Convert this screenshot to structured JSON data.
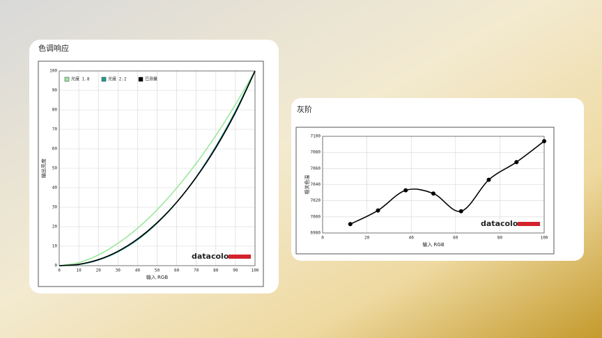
{
  "chart_data": [
    {
      "type": "line",
      "title": "色调响应",
      "x_label": "输入 RGB",
      "y_label": "输出亮度",
      "x": [
        0,
        10,
        20,
        30,
        40,
        50,
        60,
        70,
        80,
        90,
        100
      ],
      "series": [
        {
          "name": "光度 1.8",
          "color": "#9be89b",
          "values": [
            0,
            1.6,
            5.5,
            11.5,
            19.2,
            28.7,
            39.9,
            52.6,
            66.9,
            82.7,
            100
          ]
        },
        {
          "name": "光度 2.2",
          "color": "#1f9e8e",
          "values": [
            0,
            0.6,
            2.9,
            7.1,
            13.3,
            21.8,
            32.5,
            45.6,
            61.2,
            79.3,
            100
          ]
        },
        {
          "name": "已测量",
          "color": "#000000",
          "values": [
            0,
            0.7,
            3.1,
            7.4,
            13.7,
            22.1,
            32.6,
            45.4,
            60.6,
            78.6,
            100
          ]
        }
      ],
      "xlim": [
        0,
        100
      ],
      "xticks": [
        0,
        10,
        20,
        30,
        40,
        50,
        60,
        70,
        80,
        90,
        100
      ],
      "ylim": [
        0,
        100
      ],
      "yticks": [
        0,
        10,
        20,
        30,
        40,
        50,
        60,
        70,
        80,
        90,
        100
      ],
      "grid": true,
      "legend": "top-left",
      "watermark": "datacolor"
    },
    {
      "type": "line",
      "title": "灰阶",
      "x_label": "输入 RGB",
      "y_label": "相关色温",
      "x": [
        12.5,
        25,
        37.5,
        50,
        62.5,
        75,
        87.5,
        100
      ],
      "series": [
        {
          "color": "#000000",
          "values": [
            6991,
            7008,
            7033,
            7029,
            7007,
            7046,
            7068,
            7094
          ]
        }
      ],
      "xlim": [
        0,
        100
      ],
      "xticks": [
        0,
        20,
        40,
        60,
        80,
        100
      ],
      "ylim": [
        6980,
        7100
      ],
      "yticks": [
        6980,
        7000,
        7020,
        7040,
        7060,
        7080,
        7100
      ],
      "grid": true,
      "markers": true,
      "watermark": "datacolor"
    }
  ]
}
